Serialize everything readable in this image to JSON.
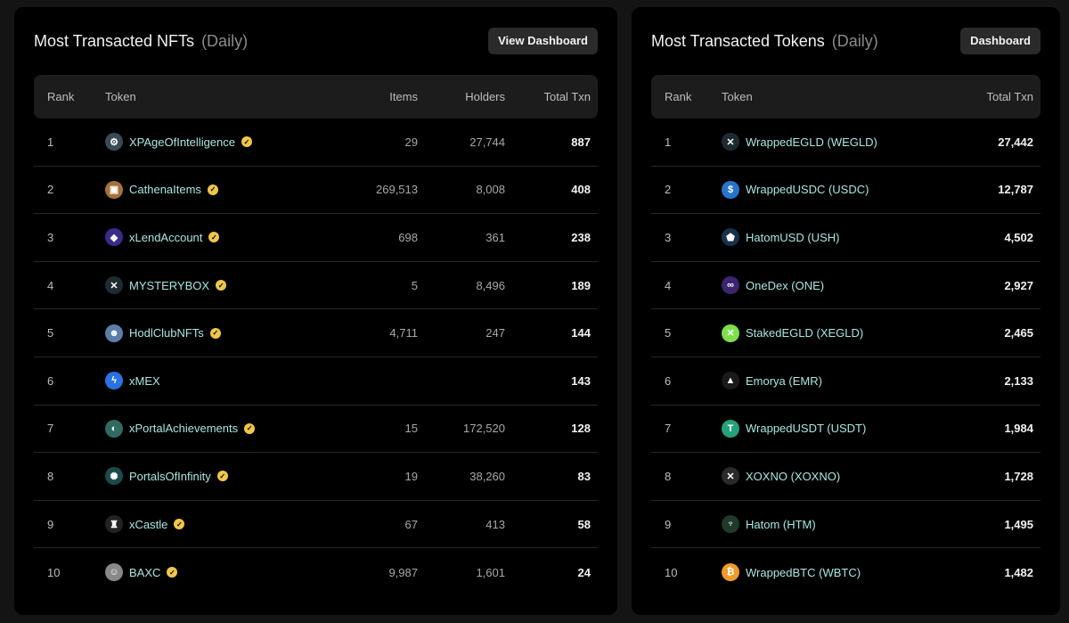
{
  "nfts": {
    "title": "Most Transacted NFTs",
    "period": "(Daily)",
    "button_label": "View Dashboard",
    "headers": {
      "rank": "Rank",
      "token": "Token",
      "items": "Items",
      "holders": "Holders",
      "total": "Total Txn"
    },
    "rows": [
      {
        "rank": "1",
        "name": "XPAgeOfIntelligence",
        "items": "29",
        "holders": "27,744",
        "total": "887",
        "icon": "robot-icon",
        "icon_color": "#3a4a55",
        "glyph": "⚙"
      },
      {
        "rank": "2",
        "name": "CathenaItems",
        "items": "269,513",
        "holders": "8,008",
        "total": "408",
        "icon": "chest-icon",
        "icon_color": "#a5713a",
        "glyph": "▣"
      },
      {
        "rank": "3",
        "name": "xLendAccount",
        "items": "698",
        "holders": "361",
        "total": "238",
        "icon": "xlend-icon",
        "icon_color": "#3b2a8a",
        "glyph": "◆"
      },
      {
        "rank": "4",
        "name": "MYSTERYBOX",
        "items": "5",
        "holders": "8,496",
        "total": "189",
        "icon": "multiversx-icon",
        "icon_color": "#1f2b33",
        "glyph": "✕"
      },
      {
        "rank": "5",
        "name": "HodlClubNFTs",
        "items": "4,711",
        "holders": "247",
        "total": "144",
        "icon": "astronaut-icon",
        "icon_color": "#5a7fa8",
        "glyph": "☻"
      },
      {
        "rank": "6",
        "name": "xMEX",
        "items": "",
        "holders": "",
        "total": "143",
        "icon": "xmex-icon",
        "icon_color": "#2a72e0",
        "glyph": "ϟ"
      },
      {
        "rank": "7",
        "name": "xPortalAchievements",
        "items": "15",
        "holders": "172,520",
        "total": "128",
        "icon": "xportal-icon",
        "icon_color": "#2f6b63",
        "glyph": "◐"
      },
      {
        "rank": "8",
        "name": "PortalsOfInfinity",
        "items": "19",
        "holders": "38,260",
        "total": "83",
        "icon": "portal-icon",
        "icon_color": "#1c4a4a",
        "glyph": "✺"
      },
      {
        "rank": "9",
        "name": "xCastle",
        "items": "67",
        "holders": "413",
        "total": "58",
        "icon": "castle-icon",
        "icon_color": "#222222",
        "glyph": "♜"
      },
      {
        "rank": "10",
        "name": "BAXC",
        "items": "9,987",
        "holders": "1,601",
        "total": "24",
        "icon": "ape-icon",
        "icon_color": "#888888",
        "glyph": "☺"
      }
    ]
  },
  "tokens": {
    "title": "Most Transacted Tokens",
    "period": "(Daily)",
    "button_label": "Dashboard",
    "headers": {
      "rank": "Rank",
      "token": "Token",
      "total": "Total Txn"
    },
    "rows": [
      {
        "rank": "1",
        "name": "WrappedEGLD (WEGLD)",
        "total": "27,442",
        "icon": "wegld-icon",
        "icon_color": "#1e2a30",
        "glyph": "✕"
      },
      {
        "rank": "2",
        "name": "WrappedUSDC (USDC)",
        "total": "12,787",
        "icon": "usdc-icon",
        "icon_color": "#2775ca",
        "glyph": "$"
      },
      {
        "rank": "3",
        "name": "HatomUSD (USH)",
        "total": "4,502",
        "icon": "ush-icon",
        "icon_color": "#17324a",
        "glyph": "⬟"
      },
      {
        "rank": "4",
        "name": "OneDex (ONE)",
        "total": "2,927",
        "icon": "onedex-icon",
        "icon_color": "#3b2470",
        "glyph": "∞"
      },
      {
        "rank": "5",
        "name": "StakedEGLD (XEGLD)",
        "total": "2,465",
        "icon": "xegld-icon",
        "icon_color": "#7de04a",
        "glyph": "✕"
      },
      {
        "rank": "6",
        "name": "Emorya (EMR)",
        "total": "2,133",
        "icon": "emorya-icon",
        "icon_color": "#1a1a1a",
        "glyph": "▲"
      },
      {
        "rank": "7",
        "name": "WrappedUSDT (USDT)",
        "total": "1,984",
        "icon": "usdt-icon",
        "icon_color": "#26a17b",
        "glyph": "T"
      },
      {
        "rank": "8",
        "name": "XOXNO (XOXNO)",
        "total": "1,728",
        "icon": "xoxno-icon",
        "icon_color": "#2a2a2a",
        "glyph": "✕"
      },
      {
        "rank": "9",
        "name": "Hatom (HTM)",
        "total": "1,495",
        "icon": "hatom-icon",
        "icon_color": "#1f3a2a",
        "glyph": "♆"
      },
      {
        "rank": "10",
        "name": "WrappedBTC (WBTC)",
        "total": "1,482",
        "icon": "wbtc-icon",
        "icon_color": "#f09a2a",
        "glyph": "₿"
      }
    ]
  }
}
